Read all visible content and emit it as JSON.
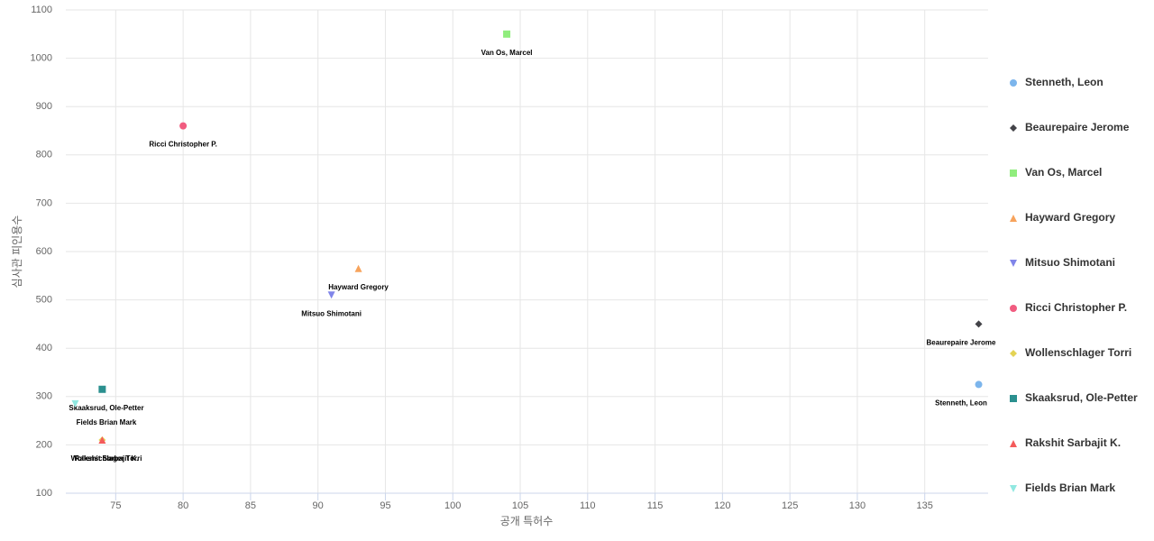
{
  "chart_data": {
    "type": "scatter",
    "x_label": "공개 특허수",
    "y_label": "심사관 피인용수",
    "xlim": [
      71.3,
      139.7
    ],
    "ylim": [
      100,
      1100
    ],
    "xticks": [
      75,
      80,
      85,
      90,
      95,
      100,
      105,
      110,
      115,
      120,
      125,
      130,
      135
    ],
    "yticks": [
      100,
      200,
      300,
      400,
      500,
      600,
      700,
      800,
      900,
      1000,
      1100
    ],
    "grid": true,
    "legend": "right",
    "series": [
      {
        "name": "Stenneth, Leon",
        "color": "#7cb5ec",
        "marker": "circle",
        "x": [
          139
        ],
        "values": [
          325
        ]
      },
      {
        "name": "Beaurepaire Jerome",
        "color": "#434348",
        "marker": "diamond",
        "x": [
          139
        ],
        "values": [
          450
        ]
      },
      {
        "name": "Van Os, Marcel",
        "color": "#90ed7d",
        "marker": "square",
        "x": [
          104
        ],
        "values": [
          1050
        ]
      },
      {
        "name": "Hayward Gregory",
        "color": "#f7a35c",
        "marker": "triangle",
        "x": [
          93
        ],
        "values": [
          565
        ]
      },
      {
        "name": "Mitsuo Shimotani",
        "color": "#8085e9",
        "marker": "triangle-down",
        "x": [
          91
        ],
        "values": [
          510
        ]
      },
      {
        "name": "Ricci Christopher P.",
        "color": "#f15c80",
        "marker": "circle",
        "x": [
          80
        ],
        "values": [
          860
        ]
      },
      {
        "name": "Wollenschlager Torri",
        "color": "#e4d354",
        "marker": "diamond",
        "x": [
          74
        ],
        "values": [
          210
        ]
      },
      {
        "name": "Skaaksrud, Ole-Petter",
        "color": "#2b908f",
        "marker": "square",
        "x": [
          74
        ],
        "values": [
          315
        ]
      },
      {
        "name": "Rakshit Sarbajit K.",
        "color": "#f45b5b",
        "marker": "triangle",
        "x": [
          74
        ],
        "values": [
          210
        ]
      },
      {
        "name": "Fields Brian Mark",
        "color": "#91e8e1",
        "marker": "triangle-down",
        "x": [
          72
        ],
        "values": [
          285
        ]
      }
    ]
  }
}
